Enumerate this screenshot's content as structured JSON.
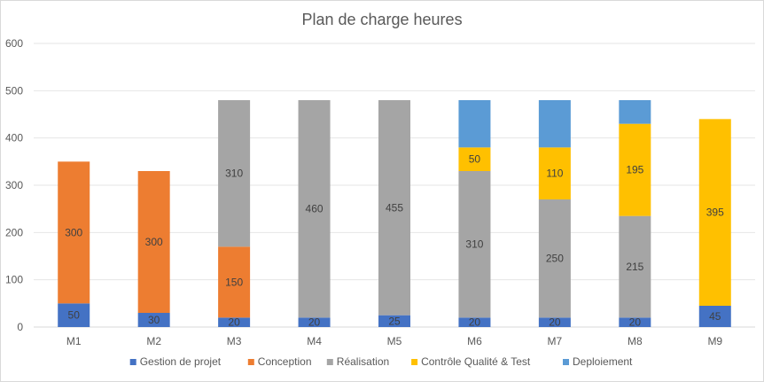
{
  "chart_data": {
    "type": "bar",
    "stacked": true,
    "title": "Plan de charge heures",
    "xlabel": "",
    "ylabel": "",
    "ylim": [
      0,
      600
    ],
    "yticks": [
      0,
      100,
      200,
      300,
      400,
      500,
      600
    ],
    "grid": true,
    "legend_position": "bottom",
    "categories": [
      "M1",
      "M2",
      "M3",
      "M4",
      "M5",
      "M6",
      "M7",
      "M8",
      "M9"
    ],
    "series": [
      {
        "name": "Gestion de projet",
        "color": "#4472c4",
        "values": [
          50,
          30,
          20,
          20,
          25,
          20,
          20,
          20,
          45
        ],
        "labels": [
          "50",
          "30",
          "20",
          "20",
          "25",
          "20",
          "20",
          "20",
          "45"
        ]
      },
      {
        "name": "Conception",
        "color": "#ed7d31",
        "values": [
          300,
          300,
          150,
          0,
          0,
          0,
          0,
          0,
          0
        ],
        "labels": [
          "300",
          "300",
          "150",
          "",
          "",
          "",
          "",
          "",
          ""
        ]
      },
      {
        "name": "Réalisation",
        "color": "#a5a5a5",
        "values": [
          0,
          0,
          310,
          460,
          455,
          310,
          250,
          215,
          0
        ],
        "labels": [
          "",
          "",
          "310",
          "460",
          "455",
          "310",
          "250",
          "215",
          ""
        ]
      },
      {
        "name": "Contrôle Qualité & Test",
        "color": "#ffc000",
        "values": [
          0,
          0,
          0,
          0,
          0,
          50,
          110,
          195,
          395
        ],
        "labels": [
          "",
          "",
          "",
          "",
          "",
          "50",
          "110",
          "195",
          "395"
        ]
      },
      {
        "name": "Deploiement",
        "color": "#5b9bd5",
        "values": [
          0,
          0,
          0,
          0,
          0,
          100,
          100,
          50,
          0
        ],
        "labels": [
          "",
          "",
          "",
          "",
          "",
          "",
          "",
          "",
          ""
        ]
      }
    ]
  }
}
